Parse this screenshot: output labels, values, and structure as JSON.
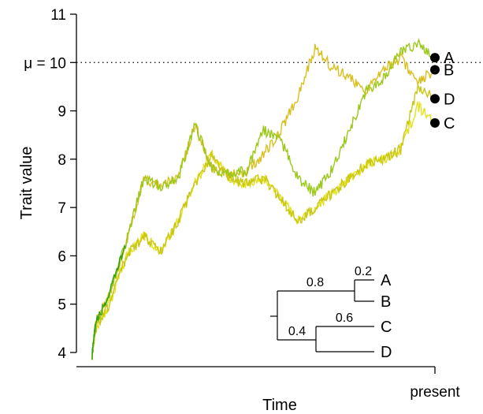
{
  "chart_data": {
    "type": "line",
    "xlabel": "Time",
    "ylabel": "Trait value",
    "x_end_label": "present",
    "ylim": [
      4,
      11
    ],
    "yticks": [
      4,
      5,
      6,
      7,
      8,
      9,
      10,
      11
    ],
    "reference_line": {
      "label": "μ = 10",
      "value": 10,
      "style": "dotted"
    },
    "colors": {
      "root": "#2ea10f",
      "A": "#9bc81a",
      "B": "#d9bf1e",
      "C": "#e3e21c",
      "D": "#c9c616"
    },
    "x_time_points": [
      0,
      0.01,
      0.05,
      0.1,
      0.15,
      0.2,
      0.25,
      0.3,
      0.35,
      0.4,
      0.45,
      0.5,
      0.55,
      0.6,
      0.65,
      0.7,
      0.75,
      0.8,
      0.85,
      0.9,
      0.95,
      1.0
    ],
    "series": [
      {
        "name": "A",
        "tip_value": 10.1,
        "values": [
          3.95,
          4.6,
          5.2,
          6.3,
          7.6,
          7.45,
          7.6,
          8.7,
          7.8,
          7.7,
          7.75,
          8.6,
          8.4,
          7.6,
          7.3,
          7.8,
          8.6,
          9.4,
          9.7,
          10.2,
          10.4,
          10.1
        ]
      },
      {
        "name": "B",
        "tip_value": 9.85,
        "values": [
          3.95,
          4.6,
          5.2,
          6.3,
          7.6,
          7.45,
          7.6,
          8.7,
          7.8,
          7.7,
          7.75,
          8.1,
          8.6,
          9.3,
          10.3,
          9.9,
          9.7,
          9.4,
          9.85,
          10.1,
          9.6,
          9.85
        ]
      },
      {
        "name": "C",
        "tip_value": 8.75,
        "values": [
          3.95,
          4.5,
          5.0,
          6.0,
          6.4,
          6.1,
          6.7,
          7.5,
          8.1,
          7.6,
          7.5,
          7.6,
          7.2,
          6.7,
          7.0,
          7.3,
          7.6,
          7.9,
          8.0,
          8.2,
          9.1,
          8.75
        ]
      },
      {
        "name": "D",
        "tip_value": 9.25,
        "values": [
          3.95,
          4.5,
          5.0,
          6.0,
          6.4,
          6.1,
          6.7,
          7.5,
          8.1,
          7.6,
          7.5,
          7.6,
          7.2,
          6.7,
          7.0,
          7.3,
          7.6,
          7.9,
          8.0,
          8.2,
          9.5,
          9.25
        ]
      }
    ],
    "tree": {
      "tips": [
        "A",
        "B",
        "C",
        "D"
      ],
      "branch_labels": [
        "0.8",
        "0.2",
        "0.4",
        "0.6"
      ]
    }
  }
}
